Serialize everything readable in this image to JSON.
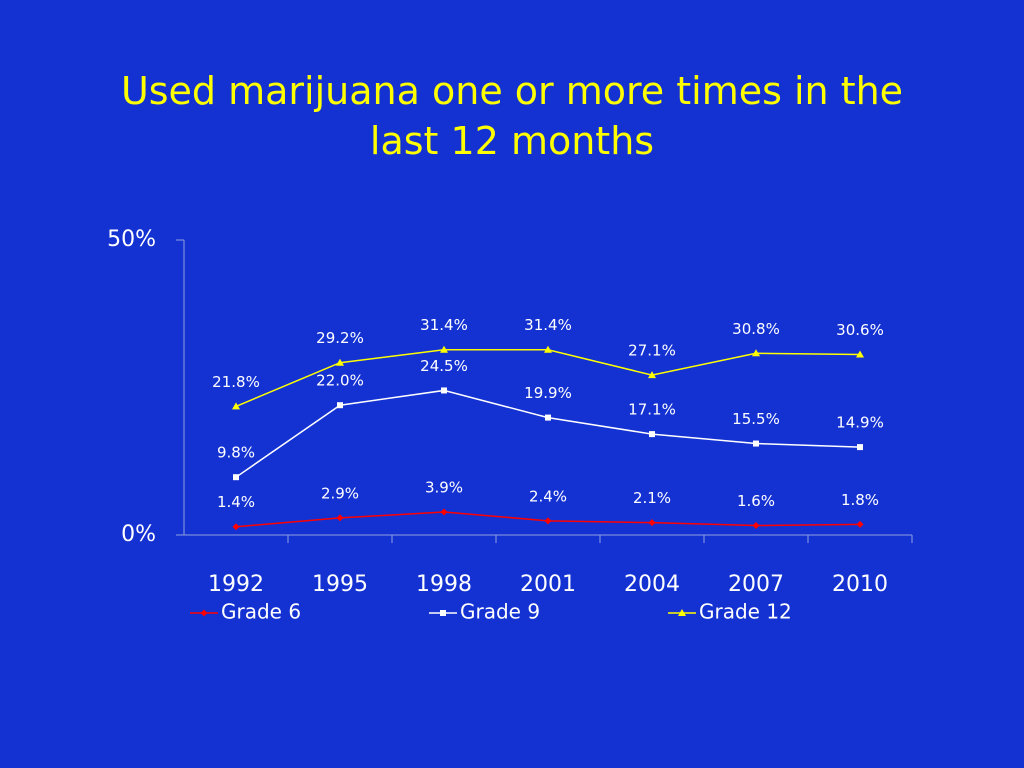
{
  "chart_data": {
    "type": "line",
    "title": "Used marijuana one or more times in the last 12 months",
    "categories": [
      "1992",
      "1995",
      "1998",
      "2001",
      "2004",
      "2007",
      "2010"
    ],
    "series": [
      {
        "name": "Grade 6",
        "color": "#ff0000",
        "marker": "diamond",
        "values": [
          1.4,
          2.9,
          3.9,
          2.4,
          2.1,
          1.6,
          1.8
        ],
        "value_labels": [
          "1.4%",
          "2.9%",
          "3.9%",
          "2.4%",
          "2.1%",
          "1.6%",
          "1.8%"
        ]
      },
      {
        "name": "Grade 9",
        "color": "#ffffff",
        "marker": "square",
        "values": [
          9.8,
          22.0,
          24.5,
          19.9,
          17.1,
          15.5,
          14.9
        ],
        "value_labels": [
          "9.8%",
          "22.0%",
          "24.5%",
          "19.9%",
          "17.1%",
          "15.5%",
          "14.9%"
        ]
      },
      {
        "name": "Grade 12",
        "color": "#ffff00",
        "marker": "triangle",
        "values": [
          21.8,
          29.2,
          31.4,
          31.4,
          27.1,
          30.8,
          30.6
        ],
        "value_labels": [
          "21.8%",
          "29.2%",
          "31.4%",
          "31.4%",
          "27.1%",
          "30.8%",
          "30.6%"
        ]
      }
    ],
    "ylim": [
      0,
      50
    ],
    "yticks": [
      {
        "value": 0,
        "label": "0%"
      },
      {
        "value": 50,
        "label": "50%"
      }
    ],
    "grid": false
  }
}
